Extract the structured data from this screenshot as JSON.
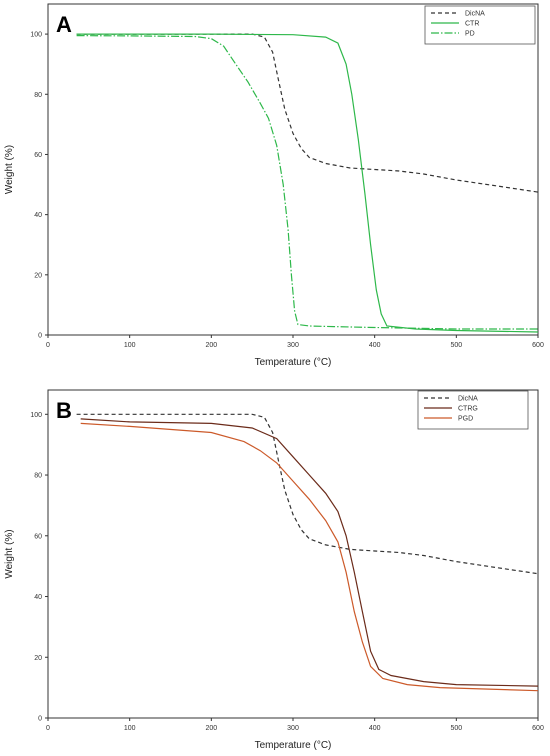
{
  "chart_data": [
    {
      "type": "line",
      "panel_label": "A",
      "xlabel": "Temperature (°C)",
      "ylabel": "Weight (%)",
      "xlim": [
        0,
        600
      ],
      "ylim": [
        0,
        110
      ],
      "xticks": [
        0,
        100,
        200,
        300,
        400,
        500,
        600
      ],
      "yticks": [
        0,
        20,
        40,
        60,
        80,
        100
      ],
      "xtick_labels": [
        "0",
        "100",
        "200",
        "300",
        "400",
        "500",
        "600"
      ],
      "ytick_labels": [
        "0",
        "20",
        "40",
        "60",
        "80",
        "100"
      ],
      "legend_position": "top-right",
      "series": [
        {
          "name": "DicNA",
          "color": "#333333",
          "dash": "4,3",
          "points": [
            [
              35,
              100
            ],
            [
              100,
              100
            ],
            [
              200,
              100
            ],
            [
              250,
              100
            ],
            [
              265,
              99
            ],
            [
              275,
              94
            ],
            [
              282,
              85
            ],
            [
              290,
              75
            ],
            [
              300,
              67
            ],
            [
              310,
              62
            ],
            [
              320,
              59
            ],
            [
              340,
              57
            ],
            [
              370,
              55.5
            ],
            [
              400,
              55
            ],
            [
              430,
              54.5
            ],
            [
              460,
              53.5
            ],
            [
              500,
              51.5
            ],
            [
              550,
              49.5
            ],
            [
              600,
              47.5
            ]
          ]
        },
        {
          "name": "CTR",
          "color": "#2eb84a",
          "dash": "",
          "points": [
            [
              35,
              100
            ],
            [
              100,
              100
            ],
            [
              200,
              100
            ],
            [
              300,
              99.8
            ],
            [
              340,
              99
            ],
            [
              355,
              97
            ],
            [
              365,
              90
            ],
            [
              372,
              80
            ],
            [
              380,
              65
            ],
            [
              388,
              47
            ],
            [
              395,
              30
            ],
            [
              402,
              15
            ],
            [
              408,
              7
            ],
            [
              415,
              3
            ],
            [
              450,
              2
            ],
            [
              500,
              1.5
            ],
            [
              600,
              1
            ]
          ]
        },
        {
          "name": "PD",
          "color": "#2eb84a",
          "dash": "8,2,1.5,2",
          "points": [
            [
              35,
              99.5
            ],
            [
              100,
              99.4
            ],
            [
              180,
              99.2
            ],
            [
              200,
              98.5
            ],
            [
              215,
              96
            ],
            [
              230,
              90
            ],
            [
              245,
              84
            ],
            [
              260,
              77
            ],
            [
              270,
              72
            ],
            [
              280,
              63
            ],
            [
              288,
              50
            ],
            [
              294,
              35
            ],
            [
              298,
              20
            ],
            [
              302,
              8
            ],
            [
              306,
              3.5
            ],
            [
              320,
              3
            ],
            [
              350,
              2.8
            ],
            [
              400,
              2.5
            ],
            [
              500,
              2
            ],
            [
              600,
              2
            ]
          ]
        }
      ]
    },
    {
      "type": "line",
      "panel_label": "B",
      "xlabel": "Temperature (°C)",
      "ylabel": "Weight (%)",
      "xlim": [
        0,
        600
      ],
      "ylim": [
        0,
        108
      ],
      "xticks": [
        0,
        100,
        200,
        300,
        400,
        500,
        600
      ],
      "yticks": [
        0,
        20,
        40,
        60,
        80,
        100
      ],
      "xtick_labels": [
        "0",
        "100",
        "200",
        "300",
        "400",
        "500",
        "600"
      ],
      "ytick_labels": [
        "0",
        "20",
        "40",
        "60",
        "80",
        "100"
      ],
      "legend_position": "top-right",
      "series": [
        {
          "name": "DicNA",
          "color": "#333333",
          "dash": "4,3",
          "points": [
            [
              35,
              100
            ],
            [
              100,
              100
            ],
            [
              200,
              100
            ],
            [
              250,
              100
            ],
            [
              265,
              99
            ],
            [
              275,
              94
            ],
            [
              282,
              85
            ],
            [
              290,
              75
            ],
            [
              300,
              67
            ],
            [
              310,
              62
            ],
            [
              320,
              59
            ],
            [
              340,
              57
            ],
            [
              370,
              55.5
            ],
            [
              400,
              55
            ],
            [
              430,
              54.5
            ],
            [
              460,
              53.5
            ],
            [
              500,
              51.5
            ],
            [
              550,
              49.5
            ],
            [
              600,
              47.5
            ]
          ]
        },
        {
          "name": "CTRG",
          "color": "#6b2b1a",
          "dash": "",
          "points": [
            [
              40,
              98.5
            ],
            [
              100,
              97.5
            ],
            [
              200,
              97
            ],
            [
              250,
              95.5
            ],
            [
              280,
              92
            ],
            [
              300,
              86
            ],
            [
              320,
              80
            ],
            [
              340,
              74
            ],
            [
              355,
              68
            ],
            [
              365,
              60
            ],
            [
              375,
              48
            ],
            [
              385,
              35
            ],
            [
              395,
              22
            ],
            [
              405,
              16
            ],
            [
              420,
              14
            ],
            [
              460,
              12
            ],
            [
              500,
              11
            ],
            [
              600,
              10.5
            ]
          ]
        },
        {
          "name": "PGD",
          "color": "#cc5a2a",
          "dash": "",
          "points": [
            [
              40,
              97
            ],
            [
              100,
              96
            ],
            [
              200,
              94
            ],
            [
              240,
              91
            ],
            [
              260,
              88
            ],
            [
              280,
              84
            ],
            [
              300,
              78
            ],
            [
              320,
              72
            ],
            [
              340,
              65
            ],
            [
              355,
              58
            ],
            [
              365,
              48
            ],
            [
              375,
              35
            ],
            [
              385,
              25
            ],
            [
              395,
              17
            ],
            [
              410,
              13
            ],
            [
              440,
              11
            ],
            [
              480,
              10
            ],
            [
              600,
              9
            ]
          ]
        }
      ]
    }
  ]
}
